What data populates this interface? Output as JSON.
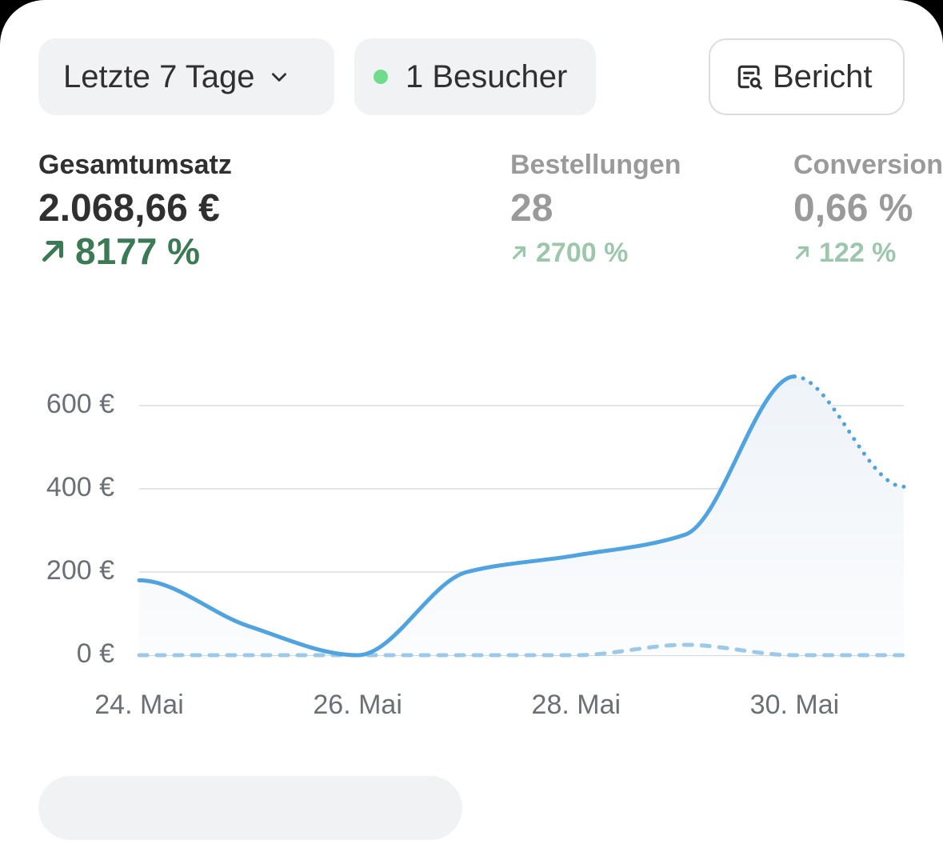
{
  "toolbar": {
    "range_label": "Letzte 7 Tage",
    "visitors_label": "1 Besucher",
    "report_label": "Bericht"
  },
  "metrics": [
    {
      "label": "Gesamtumsatz",
      "value": "2.068,66 €",
      "change": "8177 %"
    },
    {
      "label": "Bestellungen",
      "value": "28",
      "change": "2700 %"
    },
    {
      "label": "Conversion",
      "value": "0,66 %",
      "change": "122 %"
    }
  ],
  "colors": {
    "line": "#4fa3e0",
    "comparison": "#9dc9e8",
    "positive": "#3b7a55",
    "live_dot": "#6fdc8c"
  },
  "chart_data": {
    "type": "line",
    "x": [
      "24. Mai",
      "25. Mai",
      "26. Mai",
      "27. Mai",
      "28. Mai",
      "29. Mai",
      "30. Mai",
      "31. Mai"
    ],
    "x_tick_labels": [
      "24. Mai",
      "26. Mai",
      "28. Mai",
      "30. Mai"
    ],
    "y_tick_labels": [
      "0 €",
      "200 €",
      "400 €",
      "600 €"
    ],
    "ylim": [
      0,
      600
    ],
    "grid": true,
    "series": [
      {
        "style": "solid",
        "values": [
          180,
          70,
          0,
          200,
          240,
          290,
          670,
          null
        ]
      },
      {
        "style": "dotted",
        "values": [
          null,
          null,
          null,
          null,
          null,
          null,
          670,
          405
        ]
      },
      {
        "style": "dashed",
        "values": [
          0,
          0,
          0,
          0,
          0,
          25,
          0,
          0
        ]
      }
    ]
  }
}
